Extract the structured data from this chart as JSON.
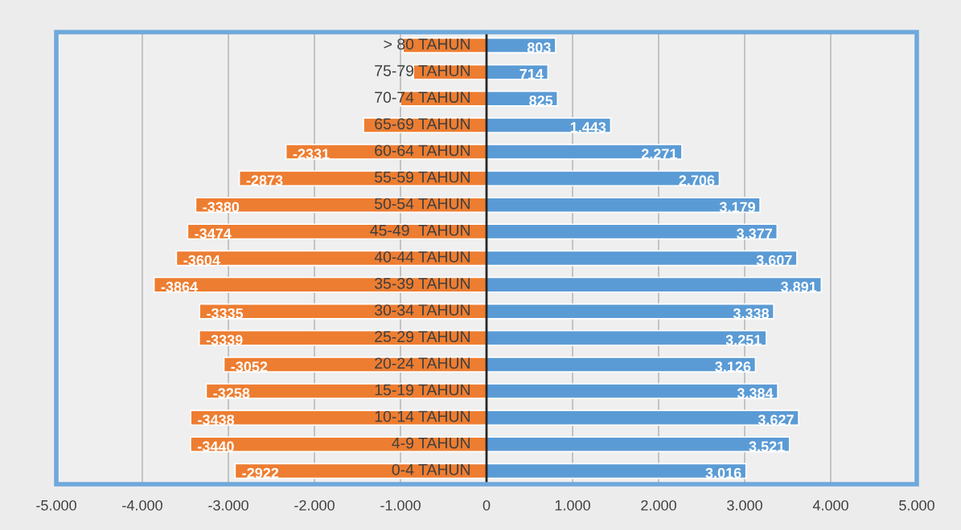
{
  "chart_data": {
    "type": "bar",
    "orientation": "horizontal",
    "stacked": true,
    "categories": [
      "> 80 TAHUN",
      "75-79 TAHUN",
      "70-74 TAHUN",
      "65-69 TAHUN",
      "60-64 TAHUN",
      "55-59 TAHUN",
      "50-54 TAHUN",
      "45-49  TAHUN",
      "40-44 TAHUN",
      "35-39 TAHUN",
      "30-34 TAHUN",
      "25-29 TAHUN",
      "20-24 TAHUN",
      "15-19 TAHUN",
      "10-14 TAHUN",
      "4-9 TAHUN",
      "0-4 TAHUN"
    ],
    "series": [
      {
        "color": "#ed7d31",
        "values": [
          -970,
          -850,
          -1000,
          -1430,
          -2331,
          -2873,
          -3380,
          -3474,
          -3604,
          -3864,
          -3335,
          -3339,
          -3052,
          -3258,
          -3438,
          -3440,
          -2922
        ],
        "value_labels": [
          null,
          null,
          null,
          null,
          "-2331",
          "-2873",
          "-3380",
          "-3474",
          "-3604",
          "-3864",
          "-3335",
          "-3339",
          "-3052",
          "-3258",
          "-3438",
          "-3440",
          "-2922"
        ]
      },
      {
        "color": "#5b9bd5",
        "values": [
          803,
          714,
          825,
          1443,
          2271,
          2706,
          3179,
          3377,
          3607,
          3891,
          3338,
          3251,
          3126,
          3384,
          3627,
          3521,
          3016
        ],
        "value_labels": [
          "803",
          "714",
          "825",
          "1.443",
          "2.271",
          "2.706",
          "3.179",
          "3.377",
          "3.607",
          "3.891",
          "3.338",
          "3.251",
          "3.126",
          "3.384",
          "3.627",
          "3.521",
          "3.016"
        ]
      }
    ],
    "xlim": [
      -5000,
      5000
    ],
    "xticks": [
      {
        "value": -5000,
        "label": "-5.000"
      },
      {
        "value": -4000,
        "label": "-4.000"
      },
      {
        "value": -3000,
        "label": "-3.000"
      },
      {
        "value": -2000,
        "label": "-2.000"
      },
      {
        "value": -1000,
        "label": "-1.000"
      },
      0,
      {
        "value": 1000,
        "label": "1.000"
      },
      {
        "value": 2000,
        "label": "2.000"
      },
      {
        "value": 3000,
        "label": "3.000"
      },
      {
        "value": 4000,
        "label": "4.000"
      },
      {
        "value": 5000,
        "label": "5.000"
      }
    ],
    "grid": "x",
    "legend": false
  }
}
